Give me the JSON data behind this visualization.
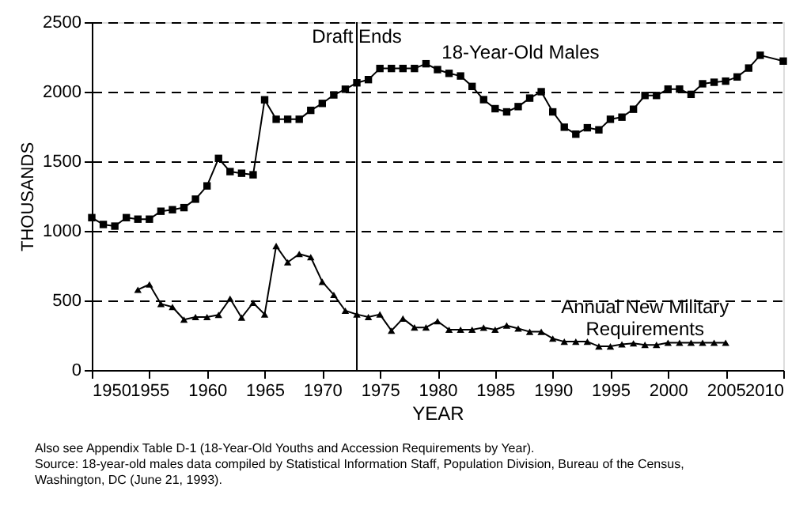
{
  "chart_data": {
    "type": "line",
    "xlabel": "YEAR",
    "ylabel": "THOUSANDS",
    "xlim": [
      1950,
      2010
    ],
    "xticks": [
      1950,
      1955,
      1960,
      1965,
      1970,
      1975,
      1980,
      1985,
      1990,
      1995,
      2000,
      2005,
      2010
    ],
    "ylim": [
      0,
      2500
    ],
    "yticks": [
      0,
      500,
      1000,
      1500,
      2000,
      2500
    ],
    "grid": "y",
    "legend": false,
    "line_style": "solid",
    "series": [
      {
        "name": "18-Year-Old Males",
        "color": "#000000",
        "marker": "square",
        "x": [
          1950,
          1951,
          1952,
          1953,
          1954,
          1955,
          1956,
          1957,
          1958,
          1959,
          1960,
          1961,
          1962,
          1963,
          1964,
          1965,
          1966,
          1967,
          1968,
          1969,
          1970,
          1971,
          1972,
          1973,
          1974,
          1975,
          1976,
          1977,
          1978,
          1979,
          1980,
          1981,
          1982,
          1983,
          1984,
          1985,
          1986,
          1987,
          1988,
          1989,
          1990,
          1991,
          1992,
          1993,
          1994,
          1995,
          1996,
          1997,
          1998,
          1999,
          2000,
          2001,
          2002,
          2003,
          2004,
          2005,
          2006,
          2007,
          2008,
          2010
        ],
        "values": [
          1095,
          1046,
          1034,
          1095,
          1084,
          1084,
          1141,
          1152,
          1167,
          1228,
          1323,
          1521,
          1426,
          1414,
          1403,
          1942,
          1802,
          1802,
          1802,
          1866,
          1916,
          1977,
          2018,
          2064,
          2087,
          2167,
          2167,
          2167,
          2167,
          2201,
          2159,
          2132,
          2113,
          2038,
          1943,
          1878,
          1855,
          1893,
          1954,
          2000,
          1855,
          1745,
          1695,
          1741,
          1726,
          1802,
          1817,
          1874,
          1973,
          1973,
          2019,
          2019,
          1981,
          2057,
          2068,
          2076,
          2106,
          2170,
          2262,
          2220
        ]
      },
      {
        "name": "Annual New Military Requirements",
        "color": "#000000",
        "marker": "triangle",
        "x": [
          1954,
          1955,
          1956,
          1957,
          1958,
          1959,
          1960,
          1961,
          1962,
          1963,
          1964,
          1965,
          1966,
          1967,
          1968,
          1969,
          1970,
          1971,
          1972,
          1973,
          1974,
          1975,
          1976,
          1977,
          1978,
          1979,
          1980,
          1981,
          1982,
          1983,
          1984,
          1985,
          1986,
          1987,
          1988,
          1989,
          1990,
          1991,
          1992,
          1993,
          1994,
          1995,
          1996,
          1997,
          1998,
          1999,
          2000,
          2001,
          2002,
          2003,
          2004,
          2005
        ],
        "values": [
          577,
          615,
          475,
          453,
          362,
          381,
          381,
          396,
          513,
          377,
          483,
          400,
          891,
          774,
          834,
          811,
          634,
          540,
          426,
          400,
          381,
          400,
          283,
          370,
          306,
          306,
          351,
          290,
          290,
          290,
          305,
          290,
          320,
          298,
          275,
          275,
          226,
          204,
          204,
          204,
          170,
          170,
          185,
          192,
          181,
          181,
          196,
          196,
          196,
          196,
          196,
          196
        ]
      }
    ],
    "ref_lines": [
      {
        "axis": "x",
        "value": 1973,
        "label": "Draft Ends",
        "color": "#000000",
        "line_style": "solid"
      }
    ],
    "annotations": [
      "Also see Appendix Table D-1 (18-Year-Old Youths and Accession Requirements by Year).",
      "Source:  18-year-old males data compiled by Statistical Information Staff, Population Division, Bureau of the Census, Washington, DC (June 21, 1993)."
    ]
  }
}
